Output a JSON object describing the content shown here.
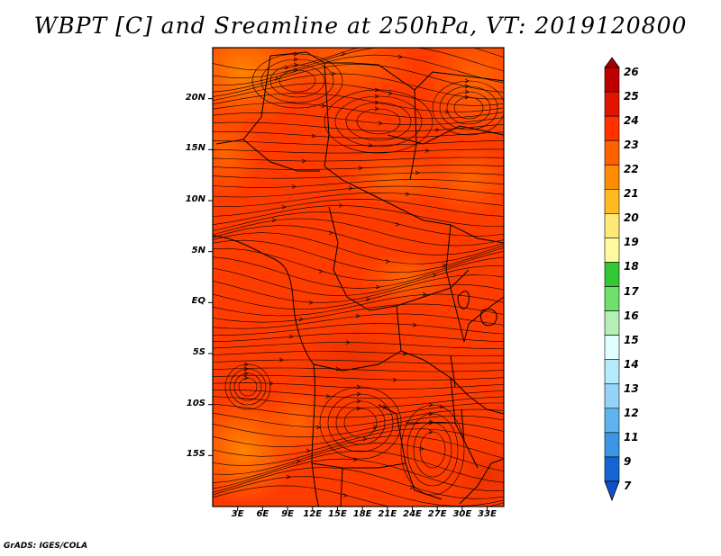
{
  "title": "WBPT [C] and Sreamline at 250hPa, VT: 2019120800",
  "credit": "GrADS: IGES/COLA",
  "map": {
    "variable": "WBPT [C]",
    "overlay": "Streamline",
    "level": "250hPa",
    "valid_time": "2019120800",
    "lat_range": [
      -20,
      25
    ],
    "lon_range": [
      0,
      35
    ],
    "lat_ticks": [
      {
        "label": "20N",
        "value": 20
      },
      {
        "label": "15N",
        "value": 15
      },
      {
        "label": "10N",
        "value": 10
      },
      {
        "label": "5N",
        "value": 5
      },
      {
        "label": "EQ",
        "value": 0
      },
      {
        "label": "5S",
        "value": -5
      },
      {
        "label": "10S",
        "value": -10
      },
      {
        "label": "15S",
        "value": -15
      }
    ],
    "lon_ticks": [
      {
        "label": "3E",
        "value": 3
      },
      {
        "label": "6E",
        "value": 6
      },
      {
        "label": "9E",
        "value": 9
      },
      {
        "label": "12E",
        "value": 12
      },
      {
        "label": "15E",
        "value": 15
      },
      {
        "label": "18E",
        "value": 18
      },
      {
        "label": "21E",
        "value": 21
      },
      {
        "label": "24E",
        "value": 24
      },
      {
        "label": "27E",
        "value": 27
      },
      {
        "label": "30E",
        "value": 30
      },
      {
        "label": "33E",
        "value": 33
      }
    ]
  },
  "colorbar": {
    "labels": [
      "26",
      "25",
      "24",
      "23",
      "22",
      "21",
      "20",
      "19",
      "18",
      "17",
      "16",
      "15",
      "14",
      "13",
      "12",
      "11",
      "9",
      "7"
    ],
    "colors": [
      "#a50000",
      "#c00000",
      "#e11400",
      "#ff3200",
      "#ff6000",
      "#ff8c00",
      "#ffbb22",
      "#ffe878",
      "#fffaa0",
      "#32c832",
      "#6ee06e",
      "#b4f0b4",
      "#e1ffff",
      "#b4ebfa",
      "#96d2fa",
      "#5fb4f0",
      "#3c96e6",
      "#1464d2",
      "#0f50c8"
    ]
  }
}
